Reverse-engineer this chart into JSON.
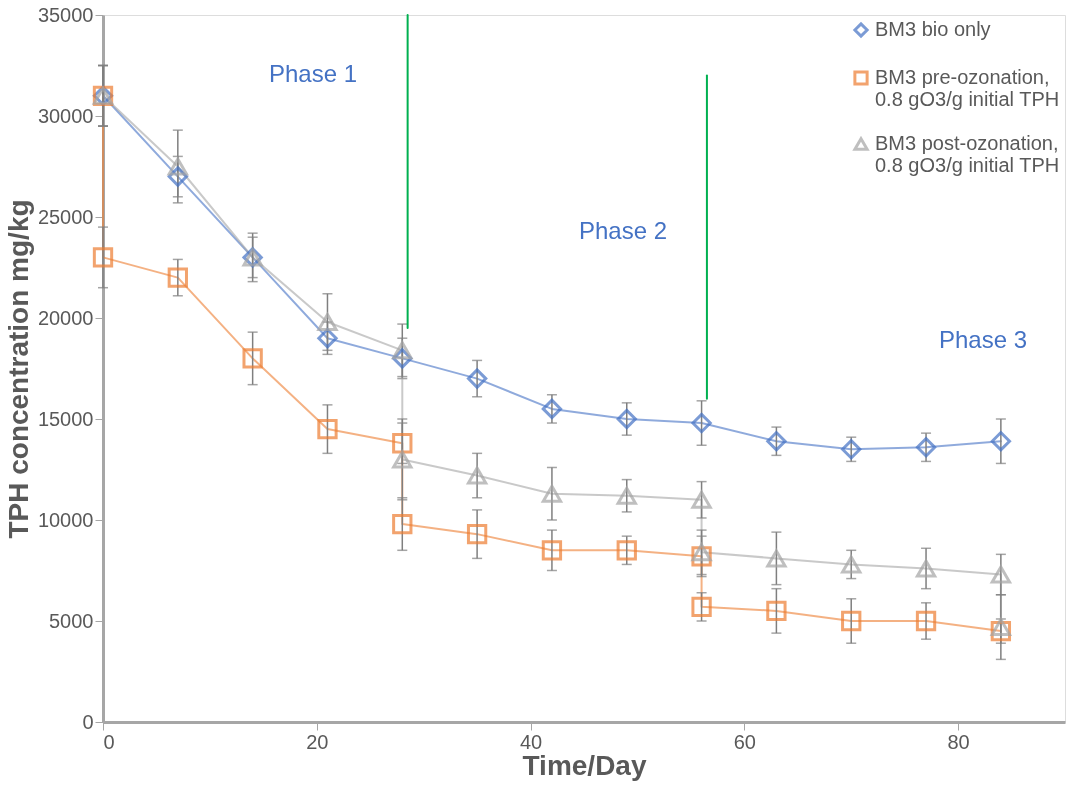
{
  "chart_data": {
    "type": "line",
    "xlabel": "Time/Day",
    "ylabel": "TPH concentration mg/kg",
    "xlim": [
      0,
      90
    ],
    "xticks": [
      0,
      20,
      40,
      60,
      80
    ],
    "ylim": [
      0,
      35000
    ],
    "yticks": [
      0,
      5000,
      10000,
      15000,
      20000,
      25000,
      30000,
      35000
    ],
    "legend": "top right",
    "series": [
      {
        "name": "BM3 bio only",
        "color": "#4472c4",
        "marker": "diamond",
        "x": [
          0,
          7,
          14,
          21,
          28,
          35,
          42,
          49,
          56,
          63,
          70,
          77,
          84
        ],
        "values": [
          31000,
          27000,
          23000,
          19000,
          18000,
          17000,
          15500,
          15000,
          14800,
          13900,
          13500,
          13600,
          13900
        ],
        "errors": [
          1500,
          1000,
          1000,
          800,
          1000,
          900,
          700,
          800,
          1100,
          700,
          600,
          700,
          1100
        ]
      },
      {
        "name": "BM3 pre-ozonation, 0.8 gO3/g initial TPH",
        "color": "#ed7d31",
        "marker": "square",
        "x": [
          0,
          0,
          7,
          14,
          21,
          28,
          28,
          35,
          42,
          49,
          56,
          56,
          63,
          70,
          77,
          84
        ],
        "values": [
          31000,
          23000,
          22000,
          18000,
          14500,
          13800,
          9800,
          9300,
          8500,
          8500,
          8200,
          5700,
          5500,
          5000,
          5000,
          4500
        ],
        "errors": [
          1500,
          1500,
          900,
          1300,
          1200,
          1000,
          1300,
          1200,
          1000,
          700,
          1000,
          700,
          1100,
          1100,
          900,
          600
        ]
      },
      {
        "name": "BM3 post-ozonation, 0.8 gO3/g initial TPH",
        "color": "#a5a5a5",
        "marker": "triangle",
        "x": [
          0,
          7,
          14,
          21,
          28,
          28,
          35,
          42,
          49,
          56,
          56,
          63,
          70,
          77,
          84,
          84
        ],
        "values": [
          31000,
          27500,
          23000,
          19800,
          18400,
          13000,
          12200,
          11300,
          11200,
          11000,
          8400,
          8100,
          7800,
          7600,
          7300,
          4700
        ],
        "errors": [
          1500,
          1800,
          1200,
          1400,
          1300,
          2000,
          1100,
          1300,
          800,
          900,
          1100,
          1300,
          700,
          1000,
          1000,
          1600
        ]
      },
      {
        "type": "line",
        "color": "#00b050",
        "x": [
          28.5,
          28.5
        ],
        "values": [
          19500,
          35000
        ]
      },
      {
        "type": "line",
        "color": "#00b050",
        "x": [
          56.5,
          56.5
        ],
        "values": [
          16000,
          32000
        ]
      }
    ],
    "annotations": [
      "Phase 1",
      "Phase 2",
      "Phase 3"
    ]
  }
}
